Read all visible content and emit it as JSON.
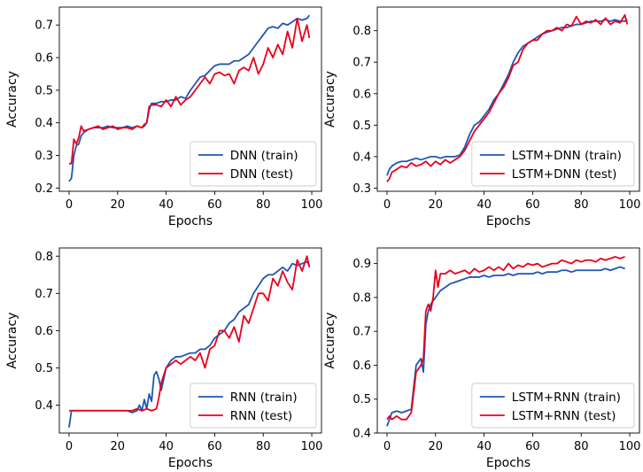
{
  "chart_data": [
    {
      "type": "line",
      "xlabel": "Epochs",
      "ylabel": "Accuracy",
      "xlim": [
        -4,
        104
      ],
      "ylim": [
        0.19,
        0.755
      ],
      "xticks": [
        "0",
        "20",
        "40",
        "60",
        "80",
        "100"
      ],
      "yticks": [
        "0.2",
        "0.3",
        "0.4",
        "0.5",
        "0.6",
        "0.7"
      ],
      "legend": "bottom-right",
      "series": [
        {
          "name": "DNN (train)",
          "color": "#1f56b4",
          "x": [
            0,
            1,
            2,
            3,
            4,
            5,
            6,
            8,
            10,
            12,
            14,
            16,
            18,
            20,
            22,
            24,
            26,
            28,
            30,
            31,
            32,
            33,
            34,
            36,
            38,
            40,
            42,
            44,
            46,
            48,
            50,
            52,
            54,
            56,
            58,
            60,
            62,
            64,
            66,
            68,
            70,
            72,
            74,
            76,
            78,
            80,
            82,
            84,
            86,
            88,
            90,
            92,
            94,
            96,
            98,
            99
          ],
          "y": [
            0.22,
            0.23,
            0.3,
            0.33,
            0.335,
            0.36,
            0.37,
            0.38,
            0.385,
            0.385,
            0.385,
            0.39,
            0.385,
            0.385,
            0.385,
            0.39,
            0.385,
            0.39,
            0.385,
            0.39,
            0.4,
            0.44,
            0.46,
            0.46,
            0.465,
            0.465,
            0.47,
            0.47,
            0.48,
            0.475,
            0.5,
            0.52,
            0.54,
            0.545,
            0.56,
            0.575,
            0.58,
            0.58,
            0.58,
            0.59,
            0.59,
            0.6,
            0.61,
            0.63,
            0.65,
            0.67,
            0.69,
            0.695,
            0.69,
            0.705,
            0.7,
            0.71,
            0.72,
            0.715,
            0.72,
            0.73
          ]
        },
        {
          "name": "DNN (test)",
          "color": "#e8001c",
          "x": [
            0,
            1,
            2,
            3,
            4,
            5,
            6,
            8,
            10,
            12,
            14,
            16,
            18,
            20,
            22,
            24,
            26,
            28,
            30,
            31,
            32,
            33,
            34,
            36,
            38,
            40,
            42,
            44,
            46,
            48,
            50,
            52,
            54,
            56,
            58,
            60,
            62,
            64,
            66,
            68,
            70,
            72,
            74,
            76,
            78,
            80,
            82,
            84,
            86,
            88,
            90,
            92,
            94,
            96,
            98,
            99
          ],
          "y": [
            0.275,
            0.275,
            0.35,
            0.335,
            0.355,
            0.39,
            0.375,
            0.38,
            0.385,
            0.39,
            0.38,
            0.385,
            0.39,
            0.38,
            0.385,
            0.385,
            0.38,
            0.39,
            0.385,
            0.395,
            0.4,
            0.45,
            0.455,
            0.455,
            0.45,
            0.47,
            0.45,
            0.48,
            0.455,
            0.47,
            0.48,
            0.5,
            0.52,
            0.54,
            0.52,
            0.55,
            0.555,
            0.545,
            0.55,
            0.52,
            0.56,
            0.57,
            0.56,
            0.6,
            0.55,
            0.58,
            0.63,
            0.6,
            0.64,
            0.61,
            0.68,
            0.63,
            0.72,
            0.65,
            0.7,
            0.66
          ]
        }
      ]
    },
    {
      "type": "line",
      "xlabel": "Epochs",
      "ylabel": "Accuracy",
      "xlim": [
        -4,
        104
      ],
      "ylim": [
        0.29,
        0.875
      ],
      "xticks": [
        "0",
        "20",
        "40",
        "60",
        "80",
        "100"
      ],
      "yticks": [
        "0.3",
        "0.4",
        "0.5",
        "0.6",
        "0.7",
        "0.8"
      ],
      "legend": "bottom-right",
      "series": [
        {
          "name": "LSTM+DNN (train)",
          "color": "#1f56b4",
          "x": [
            0,
            1,
            2,
            4,
            6,
            8,
            10,
            12,
            14,
            16,
            18,
            20,
            22,
            24,
            26,
            28,
            30,
            32,
            34,
            36,
            38,
            40,
            42,
            44,
            46,
            48,
            50,
            52,
            54,
            56,
            58,
            60,
            62,
            64,
            66,
            68,
            70,
            72,
            74,
            76,
            78,
            80,
            82,
            84,
            86,
            88,
            90,
            92,
            94,
            96,
            98,
            99
          ],
          "y": [
            0.34,
            0.36,
            0.37,
            0.38,
            0.385,
            0.385,
            0.39,
            0.395,
            0.39,
            0.395,
            0.4,
            0.4,
            0.395,
            0.4,
            0.4,
            0.4,
            0.405,
            0.43,
            0.47,
            0.5,
            0.51,
            0.53,
            0.55,
            0.58,
            0.6,
            0.63,
            0.66,
            0.7,
            0.73,
            0.75,
            0.76,
            0.77,
            0.78,
            0.79,
            0.795,
            0.8,
            0.805,
            0.81,
            0.81,
            0.815,
            0.82,
            0.82,
            0.825,
            0.83,
            0.83,
            0.83,
            0.835,
            0.83,
            0.835,
            0.83,
            0.83,
            0.835
          ]
        },
        {
          "name": "LSTM+DNN (test)",
          "color": "#e8001c",
          "x": [
            0,
            1,
            2,
            4,
            6,
            8,
            10,
            12,
            14,
            16,
            18,
            20,
            22,
            24,
            26,
            28,
            30,
            32,
            34,
            36,
            38,
            40,
            42,
            44,
            46,
            48,
            50,
            52,
            54,
            56,
            58,
            60,
            62,
            64,
            66,
            68,
            70,
            72,
            74,
            76,
            78,
            80,
            82,
            84,
            86,
            88,
            90,
            92,
            94,
            96,
            98,
            99
          ],
          "y": [
            0.32,
            0.33,
            0.35,
            0.36,
            0.37,
            0.365,
            0.38,
            0.37,
            0.375,
            0.385,
            0.37,
            0.385,
            0.375,
            0.39,
            0.38,
            0.39,
            0.4,
            0.42,
            0.45,
            0.48,
            0.5,
            0.52,
            0.54,
            0.57,
            0.6,
            0.62,
            0.65,
            0.69,
            0.7,
            0.74,
            0.76,
            0.77,
            0.77,
            0.79,
            0.8,
            0.8,
            0.81,
            0.8,
            0.82,
            0.815,
            0.845,
            0.82,
            0.83,
            0.825,
            0.835,
            0.82,
            0.84,
            0.82,
            0.83,
            0.825,
            0.85,
            0.82
          ]
        }
      ]
    },
    {
      "type": "line",
      "xlabel": "Epochs",
      "ylabel": "Accuracy",
      "xlim": [
        -4,
        104
      ],
      "ylim": [
        0.325,
        0.822
      ],
      "xticks": [
        "0",
        "20",
        "40",
        "60",
        "80",
        "100"
      ],
      "yticks": [
        "0.4",
        "0.5",
        "0.6",
        "0.7",
        "0.8"
      ],
      "legend": "bottom-right",
      "series": [
        {
          "name": "RNN (train)",
          "color": "#1f56b4",
          "x": [
            0,
            1,
            2,
            4,
            6,
            8,
            10,
            12,
            14,
            16,
            18,
            20,
            22,
            24,
            26,
            28,
            29,
            30,
            31,
            32,
            33,
            34,
            35,
            36,
            37,
            38,
            40,
            42,
            44,
            46,
            48,
            50,
            52,
            54,
            56,
            58,
            60,
            62,
            64,
            66,
            68,
            70,
            72,
            74,
            76,
            78,
            80,
            82,
            84,
            86,
            88,
            90,
            92,
            94,
            96,
            98,
            99
          ],
          "y": [
            0.34,
            0.385,
            0.385,
            0.385,
            0.385,
            0.385,
            0.385,
            0.385,
            0.385,
            0.385,
            0.385,
            0.385,
            0.385,
            0.385,
            0.38,
            0.385,
            0.4,
            0.385,
            0.415,
            0.39,
            0.43,
            0.41,
            0.48,
            0.49,
            0.47,
            0.44,
            0.5,
            0.52,
            0.53,
            0.53,
            0.535,
            0.54,
            0.54,
            0.55,
            0.55,
            0.56,
            0.58,
            0.59,
            0.6,
            0.62,
            0.63,
            0.65,
            0.66,
            0.67,
            0.7,
            0.72,
            0.74,
            0.75,
            0.75,
            0.76,
            0.77,
            0.76,
            0.78,
            0.775,
            0.78,
            0.785,
            0.775
          ]
        },
        {
          "name": "RNN (test)",
          "color": "#e8001c",
          "x": [
            0,
            1,
            2,
            4,
            6,
            8,
            10,
            12,
            14,
            16,
            18,
            20,
            22,
            24,
            26,
            28,
            30,
            32,
            34,
            36,
            37,
            38,
            40,
            42,
            44,
            46,
            48,
            50,
            52,
            54,
            56,
            58,
            60,
            62,
            64,
            66,
            68,
            70,
            72,
            74,
            76,
            78,
            80,
            82,
            84,
            86,
            88,
            90,
            92,
            94,
            96,
            98,
            99
          ],
          "y": [
            0.385,
            0.385,
            0.385,
            0.385,
            0.385,
            0.385,
            0.385,
            0.385,
            0.385,
            0.385,
            0.385,
            0.385,
            0.385,
            0.385,
            0.385,
            0.39,
            0.385,
            0.39,
            0.385,
            0.39,
            0.42,
            0.46,
            0.5,
            0.51,
            0.52,
            0.51,
            0.52,
            0.53,
            0.52,
            0.54,
            0.5,
            0.55,
            0.56,
            0.6,
            0.6,
            0.58,
            0.61,
            0.57,
            0.64,
            0.62,
            0.66,
            0.7,
            0.7,
            0.68,
            0.74,
            0.72,
            0.76,
            0.73,
            0.71,
            0.79,
            0.76,
            0.8,
            0.77
          ]
        }
      ]
    },
    {
      "type": "line",
      "xlabel": "Epochs",
      "ylabel": "Accuracy",
      "xlim": [
        -4,
        104
      ],
      "ylim": [
        0.4,
        0.946
      ],
      "xticks": [
        "0",
        "20",
        "40",
        "60",
        "80",
        "100"
      ],
      "yticks": [
        "0.4",
        "0.5",
        "0.6",
        "0.7",
        "0.8",
        "0.9"
      ],
      "legend": "bottom-right",
      "series": [
        {
          "name": "LSTM+RNN (train)",
          "color": "#1f56b4",
          "x": [
            0,
            1,
            2,
            4,
            6,
            8,
            10,
            12,
            14,
            15,
            16,
            17,
            18,
            19,
            20,
            22,
            24,
            26,
            28,
            30,
            32,
            34,
            36,
            38,
            40,
            42,
            44,
            46,
            48,
            50,
            52,
            54,
            56,
            58,
            60,
            62,
            64,
            66,
            68,
            70,
            72,
            74,
            76,
            78,
            80,
            82,
            84,
            86,
            88,
            90,
            92,
            94,
            96,
            98
          ],
          "y": [
            0.42,
            0.44,
            0.46,
            0.465,
            0.46,
            0.465,
            0.47,
            0.6,
            0.62,
            0.58,
            0.72,
            0.76,
            0.78,
            0.79,
            0.8,
            0.82,
            0.83,
            0.84,
            0.845,
            0.85,
            0.855,
            0.86,
            0.86,
            0.86,
            0.865,
            0.86,
            0.865,
            0.865,
            0.865,
            0.87,
            0.865,
            0.87,
            0.87,
            0.87,
            0.87,
            0.875,
            0.87,
            0.875,
            0.875,
            0.875,
            0.88,
            0.88,
            0.875,
            0.88,
            0.88,
            0.88,
            0.88,
            0.88,
            0.88,
            0.885,
            0.88,
            0.885,
            0.89,
            0.885
          ]
        },
        {
          "name": "LSTM+RNN (test)",
          "color": "#e8001c",
          "x": [
            0,
            1,
            2,
            4,
            6,
            8,
            10,
            12,
            14,
            15,
            16,
            17,
            18,
            19,
            20,
            21,
            22,
            24,
            26,
            28,
            30,
            32,
            34,
            36,
            38,
            40,
            42,
            44,
            46,
            48,
            50,
            52,
            54,
            56,
            58,
            60,
            62,
            64,
            66,
            68,
            70,
            72,
            74,
            76,
            78,
            80,
            82,
            84,
            86,
            88,
            90,
            92,
            94,
            96,
            98
          ],
          "y": [
            0.44,
            0.45,
            0.44,
            0.45,
            0.44,
            0.44,
            0.46,
            0.58,
            0.6,
            0.62,
            0.76,
            0.78,
            0.76,
            0.8,
            0.88,
            0.83,
            0.87,
            0.87,
            0.88,
            0.87,
            0.875,
            0.88,
            0.87,
            0.885,
            0.875,
            0.88,
            0.89,
            0.88,
            0.89,
            0.88,
            0.9,
            0.885,
            0.895,
            0.89,
            0.9,
            0.895,
            0.9,
            0.89,
            0.895,
            0.9,
            0.9,
            0.91,
            0.905,
            0.9,
            0.91,
            0.905,
            0.91,
            0.91,
            0.905,
            0.915,
            0.91,
            0.915,
            0.92,
            0.915,
            0.92
          ]
        }
      ]
    }
  ]
}
